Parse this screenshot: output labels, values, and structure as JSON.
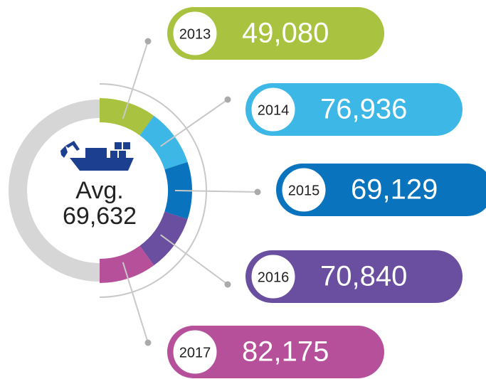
{
  "center": {
    "label": "Avg.",
    "value": "69,632"
  },
  "items": [
    {
      "year": "2013",
      "value": "49,080",
      "color": "#a9c23f"
    },
    {
      "year": "2014",
      "value": "76,936",
      "color": "#3db7e6"
    },
    {
      "year": "2015",
      "value": "69,129",
      "color": "#0a73be"
    },
    {
      "year": "2016",
      "value": "70,840",
      "color": "#6a4fa0"
    },
    {
      "year": "2017",
      "value": "82,175",
      "color": "#b6509b"
    }
  ]
}
